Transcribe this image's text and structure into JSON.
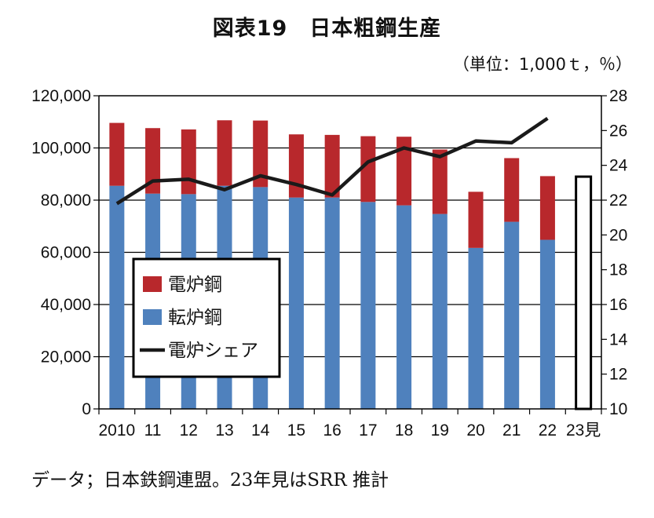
{
  "title": "図表19　日本粗鋼生産",
  "unit_note": "（単位：1,000ｔ，％）",
  "source_note": "データ；日本鉄鋼連盟。23年見はSRR 推計",
  "colors": {
    "eaf": "#b8282c",
    "bof": "#4f81bd",
    "share": "#1a1a1a"
  },
  "chart_data": {
    "type": "bar",
    "stacked": true,
    "categories": [
      "2010",
      "11",
      "12",
      "13",
      "14",
      "15",
      "16",
      "17",
      "18",
      "19",
      "20",
      "21",
      "22",
      "23見"
    ],
    "series": [
      {
        "name": "転炉鋼",
        "axis": "left",
        "values": [
          85500,
          82500,
          82300,
          85500,
          85000,
          81000,
          81000,
          79300,
          78000,
          74700,
          61700,
          71700,
          64800,
          null
        ]
      },
      {
        "name": "電炉鋼",
        "axis": "left",
        "values": [
          24100,
          25100,
          24800,
          25100,
          25500,
          24200,
          24000,
          25200,
          26300,
          24700,
          21500,
          24400,
          24400,
          null
        ]
      },
      {
        "name": "電炉シェア",
        "type": "line",
        "axis": "right",
        "values": [
          21.8,
          23.1,
          23.2,
          22.6,
          23.4,
          22.9,
          22.3,
          24.2,
          25.0,
          24.5,
          25.4,
          25.3,
          26.7,
          null
        ]
      }
    ],
    "forecast_box": {
      "category": "23見",
      "value_left": 89000
    },
    "left_axis": {
      "min": 0,
      "max": 120000,
      "ticks": [
        "0",
        "20,000",
        "40,000",
        "60,000",
        "80,000",
        "100,000",
        "120,000"
      ]
    },
    "right_axis": {
      "min": 10,
      "max": 28,
      "ticks": [
        "10",
        "12",
        "14",
        "16",
        "18",
        "20",
        "22",
        "24",
        "26",
        "28"
      ]
    },
    "grid": true,
    "legend": {
      "placement": "center-left",
      "entries": [
        {
          "label": "電炉鋼",
          "kind": "box",
          "color": "#b8282c"
        },
        {
          "label": "転炉鋼",
          "kind": "box",
          "color": "#4f81bd"
        },
        {
          "label": "電炉シェア",
          "kind": "line",
          "color": "#1a1a1a"
        }
      ]
    }
  }
}
